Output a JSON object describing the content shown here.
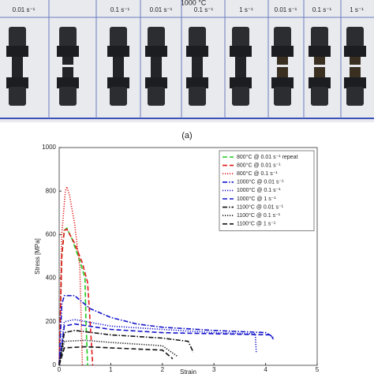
{
  "photo": {
    "header": "1000 °C",
    "labels": [
      "0.01 s⁻¹",
      "0.1 s⁻¹",
      "0.01 s⁻¹",
      "0.1 s⁻¹",
      "1 s⁻¹",
      "0.01 s⁻¹",
      "0.1 s⁻¹",
      "1 s⁻¹"
    ],
    "caption": "(a)"
  },
  "chart_data": {
    "type": "line",
    "xlabel": "Strain",
    "ylabel": "Stress [MPa]",
    "xlim": [
      0,
      5
    ],
    "xticks": [
      0,
      1,
      2,
      3,
      4,
      5
    ],
    "ylim": [
      0,
      1000
    ],
    "yticks": [
      0,
      200,
      400,
      600,
      800,
      1000
    ],
    "legend": "upper right",
    "series": [
      {
        "name": "800°C @ 0.01 s⁻¹ repeat",
        "color": "#1fcc1f",
        "dash": "dashed",
        "x": [
          0,
          0.05,
          0.1,
          0.15,
          0.25,
          0.4,
          0.5,
          0.52,
          0.55
        ],
        "values": [
          0,
          500,
          620,
          630,
          580,
          480,
          400,
          200,
          0
        ]
      },
      {
        "name": "800°C @ 0.01 s⁻¹",
        "color": "#e01a1a",
        "dash": "dashed",
        "x": [
          0,
          0.05,
          0.1,
          0.15,
          0.3,
          0.45,
          0.55,
          0.6,
          0.65
        ],
        "values": [
          0,
          500,
          620,
          625,
          560,
          470,
          380,
          200,
          0
        ]
      },
      {
        "name": "800°C @ 0.1 s⁻¹",
        "color": "#e01a1a",
        "dash": "dotted",
        "x": [
          0,
          0.05,
          0.12,
          0.15,
          0.2,
          0.3,
          0.35,
          0.4,
          0.45
        ],
        "values": [
          0,
          600,
          800,
          820,
          780,
          650,
          550,
          450,
          0
        ]
      },
      {
        "name": "1000°C @ 0.01 s⁻¹",
        "color": "#1414cc",
        "dash": "dashdot",
        "x": [
          0,
          0.05,
          0.1,
          0.3,
          0.6,
          1,
          1.5,
          2,
          3,
          4,
          4.15
        ],
        "values": [
          0,
          280,
          320,
          320,
          260,
          220,
          190,
          175,
          160,
          150,
          130
        ]
      },
      {
        "name": "1000°C @ 0.1 s⁻¹",
        "color": "#1414cc",
        "dash": "dotted",
        "x": [
          0,
          0.1,
          0.3,
          1,
          2,
          3,
          3.8,
          3.82
        ],
        "values": [
          0,
          200,
          210,
          180,
          165,
          150,
          145,
          60
        ]
      },
      {
        "name": "1000°C @ 1 s⁻¹",
        "color": "#1414cc",
        "dash": "dashed",
        "x": [
          0,
          0.1,
          0.3,
          1,
          2,
          3,
          4.1,
          4.15
        ],
        "values": [
          0,
          180,
          190,
          165,
          150,
          145,
          140,
          120
        ]
      },
      {
        "name": "1100°C @ 0.01 s⁻¹",
        "color": "#111111",
        "dash": "dashdot",
        "x": [
          0,
          0.1,
          0.3,
          1,
          2,
          2.5,
          2.6
        ],
        "values": [
          0,
          150,
          160,
          140,
          125,
          110,
          60
        ]
      },
      {
        "name": "1100°C @ 0.1 s⁻¹",
        "color": "#111111",
        "dash": "dotted",
        "x": [
          0,
          0.1,
          0.5,
          1,
          2,
          2.3
        ],
        "values": [
          0,
          110,
          115,
          105,
          90,
          40
        ]
      },
      {
        "name": "1100°C @ 1 s⁻¹",
        "color": "#111111",
        "dash": "dashed",
        "x": [
          0,
          0.1,
          0.5,
          1,
          1.5,
          2,
          2.2
        ],
        "values": [
          0,
          80,
          85,
          80,
          75,
          70,
          30
        ]
      }
    ]
  }
}
